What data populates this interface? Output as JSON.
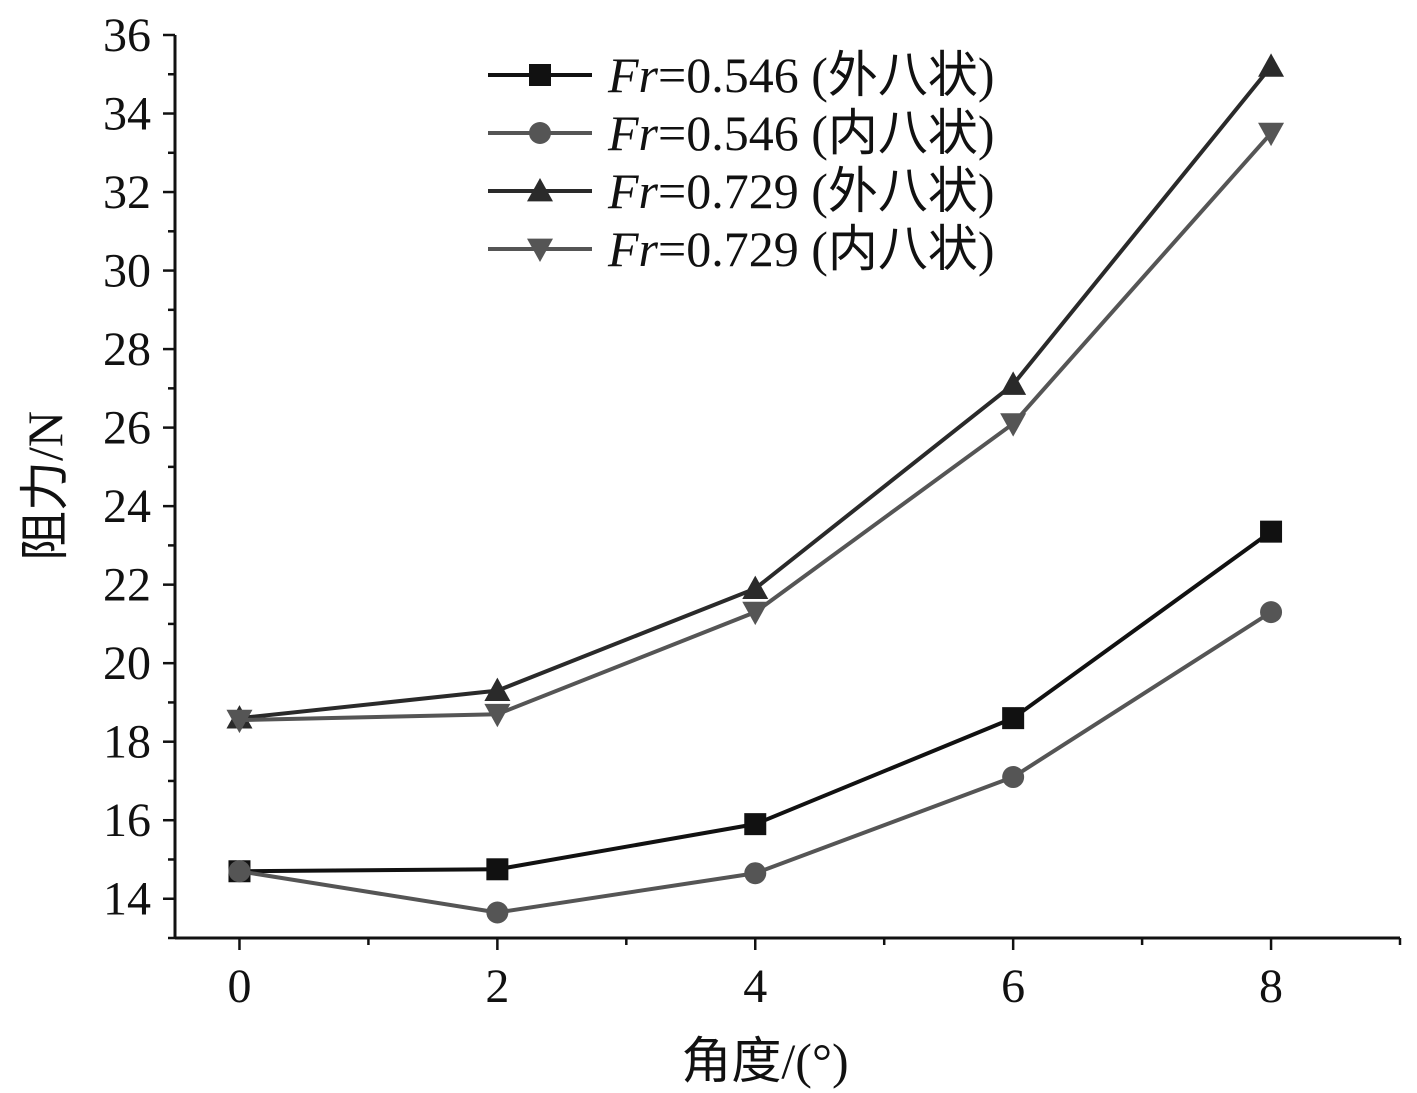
{
  "chart_data": {
    "type": "line",
    "title": "",
    "xlabel": "角度/(°)",
    "ylabel": "阻力/N",
    "x": [
      0,
      2,
      4,
      6,
      8
    ],
    "xlim": [
      -0.5,
      9
    ],
    "ylim": [
      13,
      36
    ],
    "xticks": [
      0,
      2,
      4,
      6,
      8
    ],
    "xticks_minor": [
      1,
      3,
      5,
      7,
      9
    ],
    "yticks": [
      14,
      16,
      18,
      20,
      22,
      24,
      26,
      28,
      30,
      32,
      34,
      36
    ],
    "yticks_minor": [
      13,
      15,
      17,
      19,
      21,
      23,
      25,
      27,
      29,
      31,
      33,
      35
    ],
    "grid": false,
    "legend_position": "top-center",
    "series": [
      {
        "name": "Fr=0.546 (外八状)",
        "legend_prefix": "Fr",
        "legend_suffix": "=0.546 (外八状)",
        "marker": "square",
        "color": "#111111",
        "values": [
          14.7,
          14.75,
          15.9,
          18.6,
          23.35
        ]
      },
      {
        "name": "Fr=0.546 (内八状)",
        "legend_prefix": "Fr",
        "legend_suffix": "=0.546 (内八状)",
        "marker": "circle",
        "color": "#555555",
        "values": [
          14.7,
          13.65,
          14.65,
          17.1,
          21.3
        ]
      },
      {
        "name": "Fr=0.729 (外八状)",
        "legend_prefix": "Fr",
        "legend_suffix": "=0.729 (外八状)",
        "marker": "triangle-up",
        "color": "#2a2a2a",
        "values": [
          18.6,
          19.3,
          21.9,
          27.1,
          35.2
        ]
      },
      {
        "name": "Fr=0.729 (内八状)",
        "legend_prefix": "Fr",
        "legend_suffix": "=0.729 (内八状)",
        "marker": "triangle-down",
        "color": "#555555",
        "values": [
          18.55,
          18.7,
          21.3,
          26.1,
          33.5
        ]
      }
    ]
  }
}
